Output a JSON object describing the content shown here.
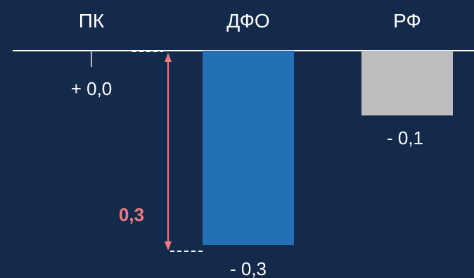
{
  "chart_data": {
    "type": "bar",
    "categories": [
      "ПК",
      "ДФО",
      "РФ"
    ],
    "values": [
      0.0,
      -0.3,
      -0.1
    ],
    "value_labels": [
      "+ 0,0",
      "- 0,3",
      "- 0,1"
    ],
    "colors": [
      "#ffffff",
      "#2470b6",
      "#bdbdc0"
    ],
    "ylim": [
      -0.3,
      0
    ],
    "grid": false,
    "legend": "none",
    "annotation": {
      "text": "0,3",
      "color": "#f07a82",
      "from_value": 0,
      "to_value": -0.3
    }
  },
  "colors": {
    "background": "#142a4a",
    "baseline": "#ffffff",
    "dash": "#ffffff"
  }
}
